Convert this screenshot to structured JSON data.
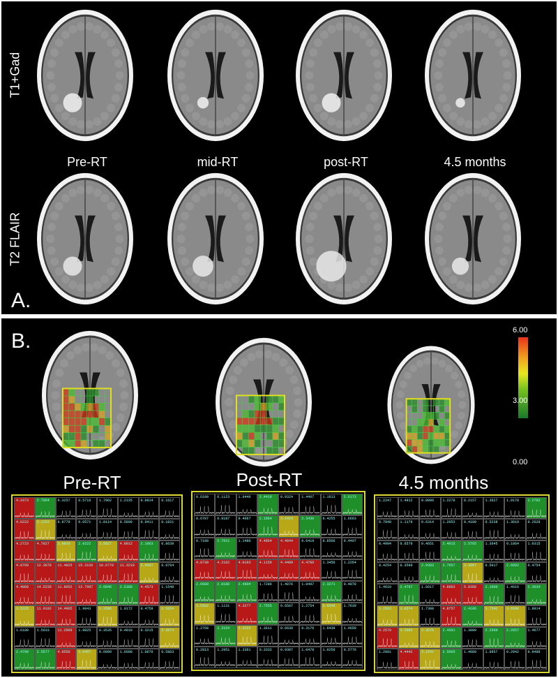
{
  "panel_a": {
    "letter": "A.",
    "row_labels": {
      "t1": "T1+Gad",
      "t2": "T2 FLAIR"
    },
    "timepoints": [
      "Pre-RT",
      "mid-RT",
      "post-RT",
      "4.5 months"
    ]
  },
  "panel_b": {
    "letter": "B.",
    "timepoints": [
      "Pre-RT",
      "Post-RT",
      "4.5 months"
    ],
    "colorbar": {
      "max": "6.00",
      "mid": "3.00",
      "min": "0.00",
      "colors": [
        "#e8321a",
        "#f0a020",
        "#e6e620",
        "#74c020",
        "#1a7a2a"
      ]
    },
    "spectra": [
      {
        "name": "pre-rt",
        "values": [
          [
            "4.1673",
            "2.7064",
            "0.3257",
            "0.5718",
            "1.7962",
            "1.2135",
            "0.0814",
            "0.1617"
          ],
          [
            "4.6222",
            "3.1153",
            "0.9779",
            "0.0571",
            "1.8114",
            "0.5809",
            "0.9411",
            "0.1821"
          ],
          [
            "4.2723",
            "4.7827",
            "3.0833",
            "2.0222",
            "3.5627",
            "4.8912",
            "2.1063",
            "0.8639"
          ],
          [
            "4.0769",
            "12.3678",
            "11.4825",
            "15.3120",
            "10.6770",
            "11.3210",
            "3.0667",
            "0.9764"
          ],
          [
            "4.4860",
            "14.5230",
            "11.8052",
            "12.7987",
            "2.6846",
            "2.5188",
            "4.4573",
            "1.1548"
          ],
          [
            "3.5225",
            "11.9192",
            "14.4965",
            "1.9843",
            "3.2506",
            "1.0172",
            "0.4759",
            "3.5654"
          ],
          [
            "1.6180",
            "1.5033",
            "11.2989",
            "1.9825",
            "0.3535",
            "0.4810",
            "0.3215",
            "3.3074"
          ],
          [
            "2.4799",
            "2.5577",
            "4.0550",
            "3.6457",
            "0.6099",
            "1.6008",
            "1.0670",
            "0.5863"
          ]
        ]
      },
      {
        "name": "post-rt",
        "values": [
          [
            "0.6180",
            "0.1123",
            "1.0440",
            "2.4410",
            "0.9324",
            "1.4407",
            "1.1613",
            "2.6173"
          ],
          [
            "0.6787",
            "0.8187",
            "0.4667",
            "2.1964",
            "3.2424",
            "2.3430",
            "0.4255",
            "1.6663"
          ],
          [
            "0.7180",
            "2.7611",
            "1.1480",
            "4.4864",
            "4.4844",
            "0.6419",
            "0.8566",
            "0.4407"
          ],
          [
            "4.8730",
            "4.2162",
            "4.0163",
            "4.1159",
            "4.4409",
            "4.4766",
            "1.3456",
            "1.2264"
          ],
          [
            "2.6680",
            "2.8180",
            "2.4604",
            "1.7286",
            "1.4876",
            "1.0497",
            "2.3271",
            "0.4879"
          ],
          [
            "3.5562",
            "1.1131",
            "4.3277",
            "2.7555",
            "0.6587",
            "1.2754",
            "3.0548",
            "1.7639"
          ],
          [
            "1.2768",
            "2.3154",
            "3.2222",
            "1.3611",
            "0.6639",
            "0.3176",
            "1.6439",
            "1.4659"
          ],
          [
            "0.2813",
            "1.2951",
            "1.3361",
            "0.3332",
            "0.9307",
            "1.0478",
            "1.0259",
            "0.5776"
          ]
        ]
      },
      {
        "name": "4-5-months",
        "values": [
          [
            "1.2247",
            "1.4912",
            "0.0096",
            "1.2278",
            "0.2157",
            "1.3627",
            "1.9178",
            "2.2782"
          ],
          [
            "0.7848",
            "1.1179",
            "0.6314",
            "1.2053",
            "0.4180",
            "0.5238",
            "1.3819",
            "0.2628"
          ],
          [
            "0.4994",
            "0.6570",
            "0.4651",
            "2.4015",
            "2.5765",
            "1.3645",
            "0.1864",
            "1.0315"
          ],
          [
            "0.4254",
            "0.3599",
            "2.9303",
            "2.7657",
            "3.3067",
            "0.5017",
            "2.6602",
            "0.4754"
          ],
          [
            "1.4618",
            "2.4767",
            "1.6617",
            "4.8903",
            "5.0368",
            "2.1600",
            "1.4616",
            "2.3934"
          ],
          [
            "3.2562",
            "3.0574",
            "1.7308",
            "4.8757",
            "2.4186",
            "3.7542",
            "3.6508",
            "1.8914"
          ],
          [
            "4.2570",
            "3.2083",
            "3.3678",
            "2.4591",
            "1.3809",
            "2.2560",
            "2.2657",
            "1.4677"
          ],
          [
            "1.2081",
            "4.4442",
            "3.1542",
            "2.5665",
            "1.4889",
            "1.0957",
            "0.2942",
            "0.9488"
          ]
        ]
      }
    ]
  },
  "scan_colors": {
    "background": "#000000",
    "skull": "#f2f2f2",
    "brain": "#8a8a8a",
    "ventricle": "#1a1a1a",
    "roi": "#e0e020",
    "grid": "#40d040",
    "lesion_t1": "#f0f0f0",
    "lesion_t2": "#e8e8e8"
  }
}
